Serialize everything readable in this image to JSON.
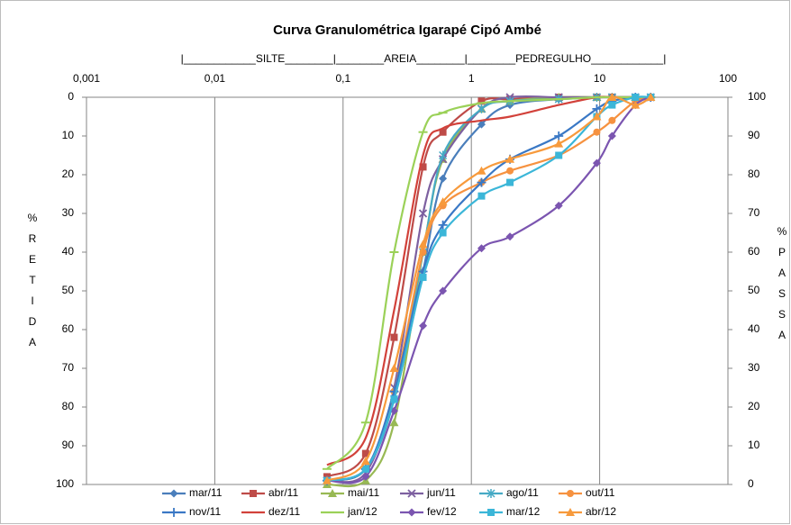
{
  "chart_data": {
    "type": "line",
    "title": "Curva Granulométrica Igarapé Cipó Ambé",
    "subtitle": "|____________SILTE________|________AREIA________|________PEDREGULHO____________|",
    "y_label": "%RETIDA",
    "y2_label": "%PASSA",
    "xscale": "log",
    "grid": "x",
    "legend": "bottom",
    "xlim": [
      0.001,
      100
    ],
    "xticks": [
      {
        "value": 0.001,
        "label": "0,001"
      },
      {
        "value": 0.01,
        "label": "0,01"
      },
      {
        "value": 0.1,
        "label": "0,1"
      },
      1,
      10,
      100
    ],
    "ylim": [
      100,
      0
    ],
    "yticks": [
      0,
      10,
      20,
      30,
      40,
      50,
      60,
      70,
      80,
      90,
      100
    ],
    "y2lim": [
      0,
      100
    ],
    "y2ticks": [
      100,
      90,
      80,
      70,
      60,
      50,
      40,
      30,
      20,
      10,
      0
    ],
    "x": [
      0.075,
      0.15,
      0.25,
      0.42,
      0.6,
      1.2,
      2.0,
      4.8,
      9.5,
      12.5,
      19,
      25
    ],
    "series": [
      {
        "name": "mar/11",
        "color": "#4a7ebb",
        "marker": "diamond",
        "values": [
          99,
          96,
          78,
          45,
          21,
          7,
          2,
          0.5,
          0,
          0,
          0,
          0
        ]
      },
      {
        "name": "abr/11",
        "color": "#be4b48",
        "marker": "square",
        "values": [
          98,
          92,
          62,
          18,
          9,
          1,
          0.5,
          0,
          0,
          0,
          0,
          0
        ]
      },
      {
        "name": "mai/11",
        "color": "#98b954",
        "marker": "triangle",
        "values": [
          100,
          99,
          84,
          40,
          16,
          3,
          1,
          0,
          0,
          0,
          0,
          0
        ]
      },
      {
        "name": "jun/11",
        "color": "#7d60a0",
        "marker": "x",
        "values": [
          99,
          97,
          75,
          30,
          16,
          3,
          0,
          0,
          0,
          0,
          0,
          0
        ]
      },
      {
        "name": "ago/11",
        "color": "#46aac5",
        "marker": "star",
        "values": [
          99,
          96,
          78,
          40,
          15,
          3,
          1,
          0.5,
          0,
          0,
          0,
          0
        ]
      },
      {
        "name": "out/11",
        "color": "#f69240",
        "marker": "circle",
        "values": [
          99,
          96,
          76,
          40,
          28,
          22,
          19,
          15,
          9,
          6,
          1,
          0
        ]
      },
      {
        "name": "nov/11",
        "color": "#3a78c5",
        "marker": "plus",
        "values": [
          99,
          96,
          76,
          45,
          33,
          22,
          16,
          10,
          3,
          1,
          0,
          0
        ]
      },
      {
        "name": "dez/11",
        "color": "#d2413a",
        "marker": "none",
        "values": [
          95,
          88,
          55,
          15,
          8,
          6,
          5,
          2,
          0,
          0,
          0,
          0
        ]
      },
      {
        "name": "jan/12",
        "color": "#9bd158",
        "marker": "dash",
        "values": [
          96,
          84,
          40,
          9,
          4,
          1.5,
          1,
          0.5,
          0,
          0,
          0,
          0
        ]
      },
      {
        "name": "fev/12",
        "color": "#7b55b0",
        "marker": "diamond",
        "values": [
          99,
          98,
          81,
          59,
          50,
          39,
          36,
          28,
          17,
          10,
          2,
          0
        ]
      },
      {
        "name": "mar/12",
        "color": "#3bb6d8",
        "marker": "square",
        "values": [
          99,
          96,
          78,
          46.5,
          35,
          25.5,
          22,
          15,
          5,
          2,
          0,
          0
        ]
      },
      {
        "name": "abr/12",
        "color": "#f79a3c",
        "marker": "triangle",
        "values": [
          99,
          94,
          70,
          38,
          27,
          19,
          16,
          12,
          5,
          0,
          2,
          0
        ]
      }
    ]
  }
}
